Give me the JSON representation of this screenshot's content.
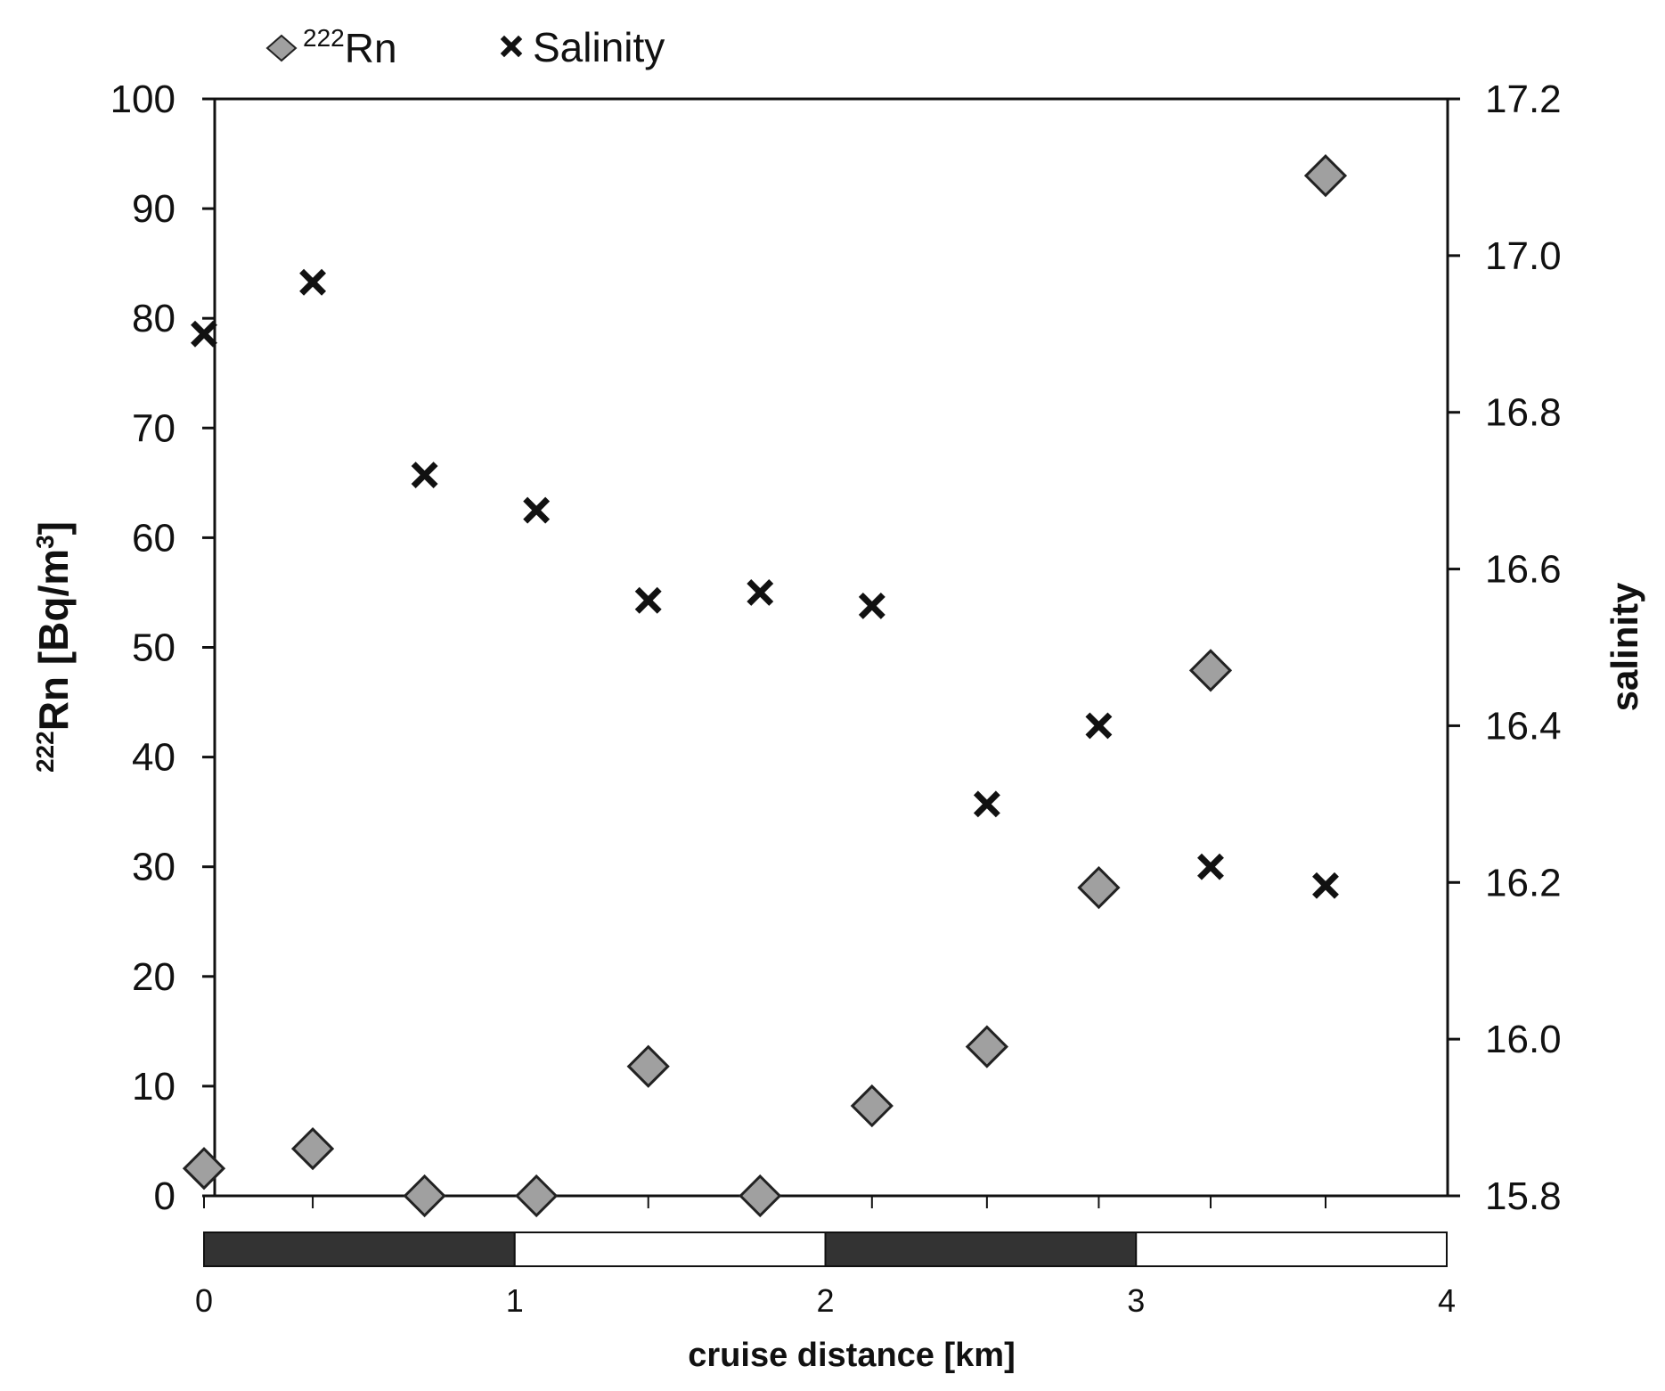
{
  "chart_data": {
    "type": "scatter",
    "legend": {
      "position": "top-left",
      "items": [
        {
          "marker": "diamond",
          "sup": "222",
          "text": "Rn"
        },
        {
          "marker": "cross",
          "text": "Salinity"
        }
      ]
    },
    "x_positions": [
      0,
      0.35,
      0.71,
      1.07,
      1.43,
      1.79,
      2.15,
      2.52,
      2.88,
      3.24,
      3.61
    ],
    "series": [
      {
        "name": "222Rn",
        "axis": "left",
        "marker": "diamond",
        "color": "#a0a0a0",
        "values": [
          2.5,
          4.3,
          0,
          0,
          11.8,
          0,
          8.2,
          13.6,
          28.1,
          47.9,
          93
        ]
      },
      {
        "name": "Salinity",
        "axis": "right",
        "marker": "cross",
        "color": "#111111",
        "values": [
          16.9,
          16.966,
          16.72,
          16.675,
          16.56,
          16.57,
          16.553,
          16.3,
          16.4,
          16.22,
          16.196
        ]
      }
    ],
    "y_left": {
      "label_sup": "222",
      "label_main": "Rn [Bq/m",
      "label_unit_sup": "3",
      "label_close": "]",
      "ticks": [
        "0",
        "10",
        "20",
        "30",
        "40",
        "50",
        "60",
        "70",
        "80",
        "90",
        "100"
      ],
      "range": [
        0,
        100
      ]
    },
    "y_right": {
      "label": "salinity",
      "ticks": [
        "15.8",
        "16.0",
        "16.2",
        "16.4",
        "16.6",
        "16.8",
        "17.0",
        "17.2"
      ],
      "range": [
        15.8,
        17.2
      ]
    },
    "x_scale": {
      "label": "cruise distance [km]",
      "ticks": [
        "0",
        "1",
        "2",
        "3",
        "4"
      ],
      "range": [
        0,
        4
      ],
      "segment_colors": [
        "#333333",
        "#ffffff",
        "#333333",
        "#ffffff"
      ]
    },
    "grid": false
  }
}
